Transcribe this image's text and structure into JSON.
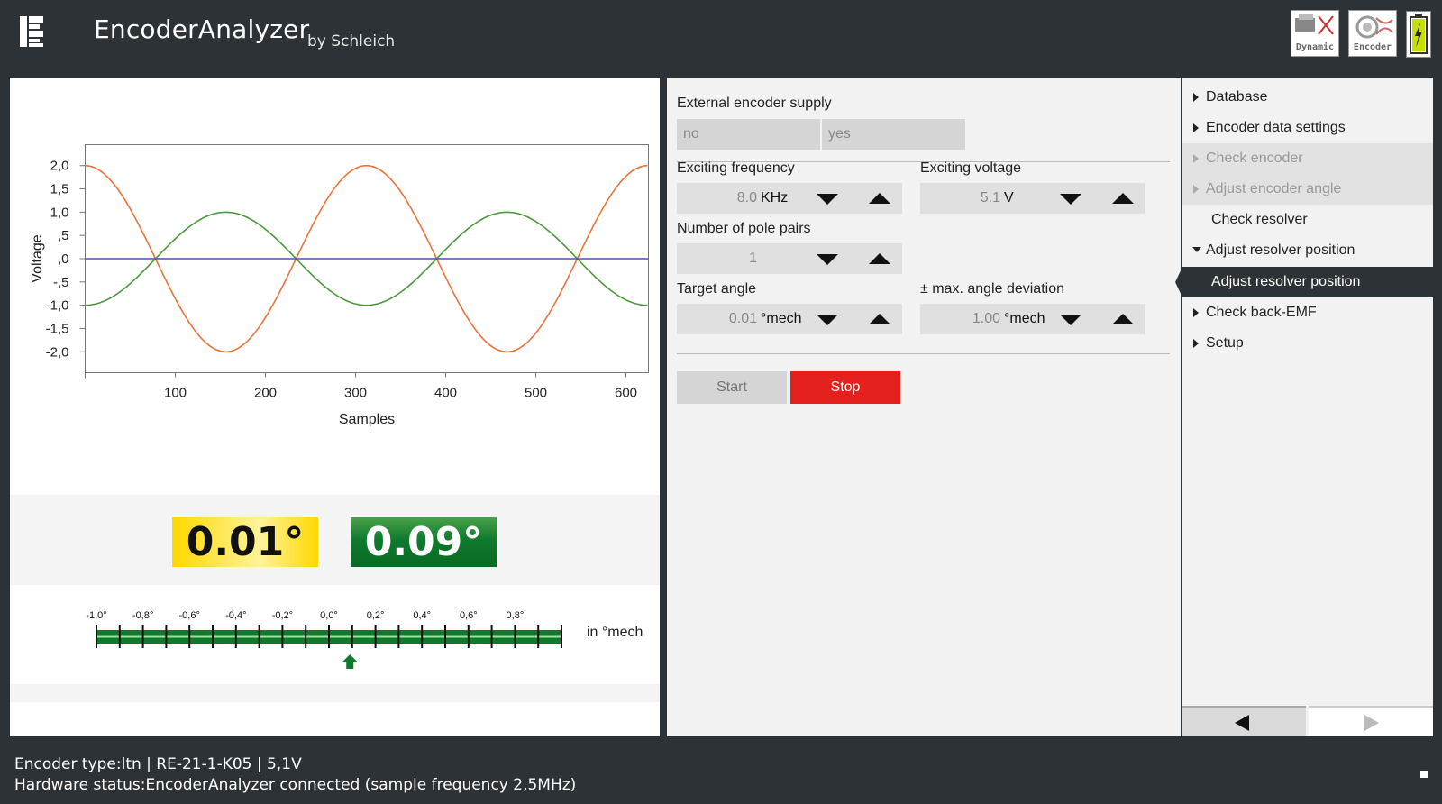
{
  "header": {
    "title": "EncoderAnalyzer",
    "subtitle": "by Schleich",
    "icons": [
      {
        "name": "dynamic-icon",
        "label": "Dynamic"
      },
      {
        "name": "encoder-icon",
        "label": "Encoder"
      },
      {
        "name": "battery-icon",
        "label": ""
      }
    ]
  },
  "chart_data": {
    "type": "line",
    "xlabel": "Samples",
    "ylabel": "Voltage",
    "xlim": [
      0,
      625
    ],
    "ylim": [
      -2.45,
      2.45
    ],
    "xticks": [
      100,
      200,
      300,
      400,
      500,
      600
    ],
    "yticks": [
      2.0,
      1.5,
      1.0,
      0.5,
      0,
      -0.5,
      -1.0,
      -1.5,
      -2.0
    ],
    "ytick_labels": [
      "2,0",
      "1,5",
      "1,0",
      ",5",
      ",0",
      "-,5",
      "-1,0",
      "-1,5",
      "-2,0"
    ],
    "series": [
      {
        "color": "#e8743b",
        "amplitude": 2.0,
        "period": 312,
        "peak_x": 0,
        "points": [
          [
            0,
            2.0
          ],
          [
            78,
            0
          ],
          [
            156,
            -2.0
          ],
          [
            234,
            0
          ],
          [
            312,
            2.0
          ],
          [
            390,
            0
          ],
          [
            468,
            -2.0
          ],
          [
            546,
            0
          ],
          [
            624,
            2.0
          ]
        ]
      },
      {
        "color": "#4a9a3a",
        "amplitude": 1.0,
        "period": 312,
        "peak_x": 156,
        "points": [
          [
            0,
            -1.0
          ],
          [
            78,
            0
          ],
          [
            156,
            1.0
          ],
          [
            234,
            0
          ],
          [
            312,
            -1.0
          ],
          [
            390,
            0
          ],
          [
            468,
            1.0
          ],
          [
            546,
            0
          ],
          [
            624,
            -1.0
          ]
        ]
      },
      {
        "color": "#5050a8",
        "constant": 0,
        "points": [
          [
            0,
            0
          ],
          [
            625,
            0
          ]
        ]
      }
    ]
  },
  "readouts": {
    "target": "0.01°",
    "deviation": "0.09°",
    "target_color": "#ffd800",
    "deviation_color": "#0f7a2e"
  },
  "scale": {
    "tick_labels": [
      "-1,0°",
      "-0,8°",
      "-0,6°",
      "-0,4°",
      "-0,2°",
      "0,0°",
      "0,2°",
      "0,4°",
      "0,6°",
      "0,8°"
    ],
    "unit": "in °mech",
    "min": -1.0,
    "max": 1.0,
    "pointer_value": 0.09,
    "bar_color": "#0f7a2e"
  },
  "settings": {
    "supply_label": "External encoder supply",
    "supply_options": [
      "no",
      "yes"
    ],
    "freq_label": "Exciting frequency",
    "freq_value": "8.0",
    "freq_unit": "KHz",
    "volt_label": "Exciting voltage",
    "volt_value": "5.1",
    "volt_unit": "V",
    "pole_label": "Number of pole pairs",
    "pole_value": "1",
    "target_label": "Target angle",
    "target_value": "0.01",
    "target_unit": "°mech",
    "dev_label": "± max. angle deviation",
    "dev_value": "1.00",
    "dev_unit": "°mech",
    "start": "Start",
    "stop": "Stop"
  },
  "nav": {
    "items": [
      {
        "label": "Database",
        "state": "normal"
      },
      {
        "label": "Encoder data settings",
        "state": "normal"
      },
      {
        "label": "Check encoder",
        "state": "disabled"
      },
      {
        "label": "Adjust encoder angle",
        "state": "disabled"
      },
      {
        "label": "Check resolver",
        "state": "sub"
      },
      {
        "label": "Adjust resolver position",
        "state": "expanded"
      },
      {
        "label": "Adjust resolver position",
        "state": "active"
      },
      {
        "label": "Check back-EMF",
        "state": "normal"
      },
      {
        "label": "Setup",
        "state": "normal"
      }
    ]
  },
  "status": {
    "line1": "Encoder type:ltn | RE-21-1-K05 | 5,1V",
    "line2": "Hardware status:EncoderAnalyzer connected (sample frequency 2,5MHz)"
  }
}
